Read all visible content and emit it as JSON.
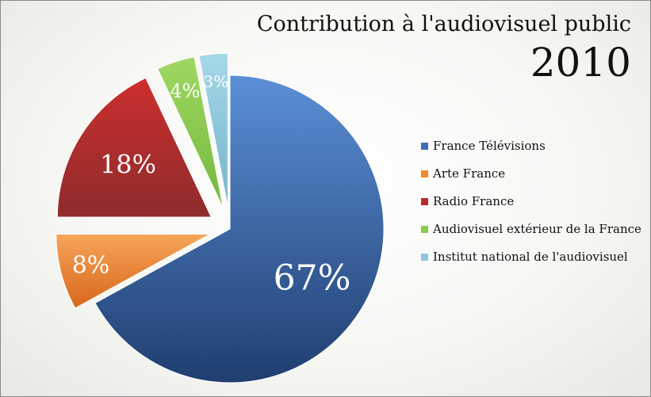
{
  "chart_data": {
    "type": "pie",
    "title": "Contribution à l'audiovisuel public",
    "subtitle": "2010",
    "legend_position": "right",
    "slices": [
      {
        "label": "France Télévisions",
        "value": 67,
        "display": "67%",
        "color": "#3f6fb5",
        "color_light": "#5b8fd6",
        "color_dark": "#1f3e70"
      },
      {
        "label": "Arte France",
        "value": 8,
        "display": "8%",
        "color": "#f08a30",
        "color_light": "#f7a55a",
        "color_dark": "#d8661a"
      },
      {
        "label": "Radio France",
        "value": 18,
        "display": "18%",
        "color": "#b52a2a",
        "color_light": "#cc2e2e",
        "color_dark": "#8e2c2c"
      },
      {
        "label": "Audiovisuel extérieur de la France",
        "value": 4,
        "display": "4%",
        "color": "#8ccc52",
        "color_light": "#9fd862",
        "color_dark": "#74b83e"
      },
      {
        "label": "Institut national de l'audiovisuel",
        "value": 3,
        "display": "3%",
        "color": "#8cc8dc",
        "color_light": "#a6d8e8",
        "color_dark": "#74b4cc"
      }
    ]
  }
}
